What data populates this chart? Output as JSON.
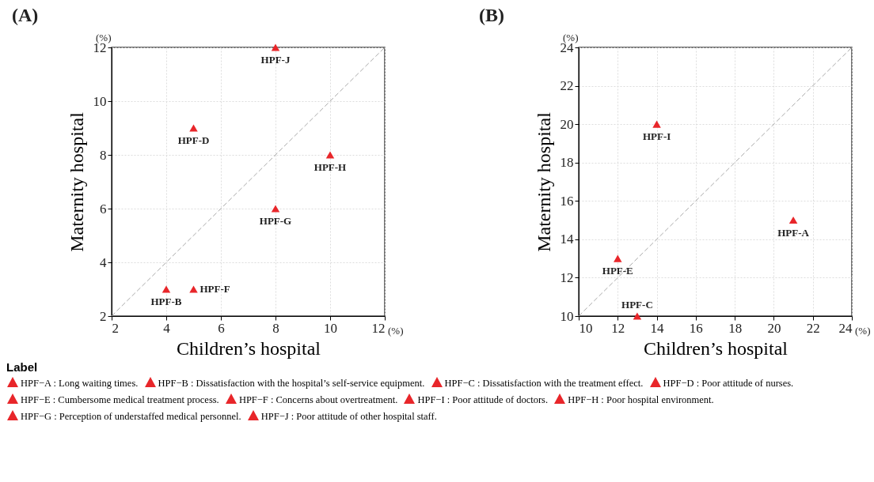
{
  "chart_data": [
    {
      "type": "scatter",
      "title": "(A)",
      "xlabel": "Children’s hospital",
      "ylabel": "Maternity hospital",
      "xlim": [
        2,
        12
      ],
      "xticks": [
        2,
        4,
        6,
        8,
        10,
        12
      ],
      "ylim": [
        2,
        12
      ],
      "yticks": [
        2,
        4,
        6,
        8,
        10,
        12
      ],
      "grid": true,
      "marker": "triangle",
      "series": [
        {
          "color": "#e8262a",
          "x": [
            4,
            5,
            5,
            8,
            8,
            10
          ],
          "values": [
            3,
            3,
            9,
            6,
            12,
            8
          ]
        },
        {
          "type": "line",
          "color": "#aaaaaa",
          "line_style": "dashed",
          "marker": "none",
          "x": [
            2,
            12
          ],
          "values": [
            2,
            12
          ]
        }
      ],
      "annotations": [
        {
          "text": "HPF-B",
          "x": 4,
          "y": 3
        },
        {
          "text": "HPF-F",
          "x": 5,
          "y": 3
        },
        {
          "text": "HPF-D",
          "x": 5,
          "y": 9
        },
        {
          "text": "HPF-G",
          "x": 8,
          "y": 6
        },
        {
          "text": "HPF-J",
          "x": 8,
          "y": 12
        },
        {
          "text": "HPF-H",
          "x": 10,
          "y": 8
        },
        "(%)",
        "(%)"
      ]
    },
    {
      "type": "scatter",
      "title": "(B)",
      "xlabel": "Children’s hospital",
      "ylabel": "Maternity hospital",
      "xlim": [
        10,
        24
      ],
      "xticks": [
        10,
        12,
        14,
        16,
        18,
        20,
        22,
        24
      ],
      "ylim": [
        10,
        24
      ],
      "yticks": [
        10,
        12,
        14,
        16,
        18,
        20,
        22,
        24
      ],
      "grid": true,
      "marker": "triangle",
      "series": [
        {
          "color": "#e8262a",
          "x": [
            12,
            13,
            14,
            21
          ],
          "values": [
            13,
            10,
            20,
            15
          ]
        },
        {
          "type": "line",
          "color": "#aaaaaa",
          "line_style": "dashed",
          "marker": "none",
          "x": [
            10,
            24
          ],
          "values": [
            10,
            24
          ]
        }
      ],
      "annotations": [
        {
          "text": "HPF-E",
          "x": 12,
          "y": 13
        },
        {
          "text": "HPF-C",
          "x": 13,
          "y": 10
        },
        {
          "text": "HPF-I",
          "x": 14,
          "y": 20
        },
        {
          "text": "HPF-A",
          "x": 21,
          "y": 15
        },
        "(%)",
        "(%)"
      ]
    },
    {
      "type": "other",
      "title": "Label",
      "annotations": [
        "HPF−A : Long waiting times.",
        "HPF−B : Dissatisfaction with the hospital’s self-service equipment.",
        "HPF−C : Dissatisfaction with the treatment effect.",
        "HPF−D : Poor attitude of nurses.",
        "HPF−E : Cumbersome medical treatment process.",
        "HPF−F : Concerns about overtreatment.",
        "HPF−I : Poor attitude of doctors.",
        "HPF−H : Poor hospital environment.",
        "HPF−G : Perception of understaffed medical personnel.",
        "HPF−J : Poor attitude of other hospital staff."
      ]
    }
  ]
}
